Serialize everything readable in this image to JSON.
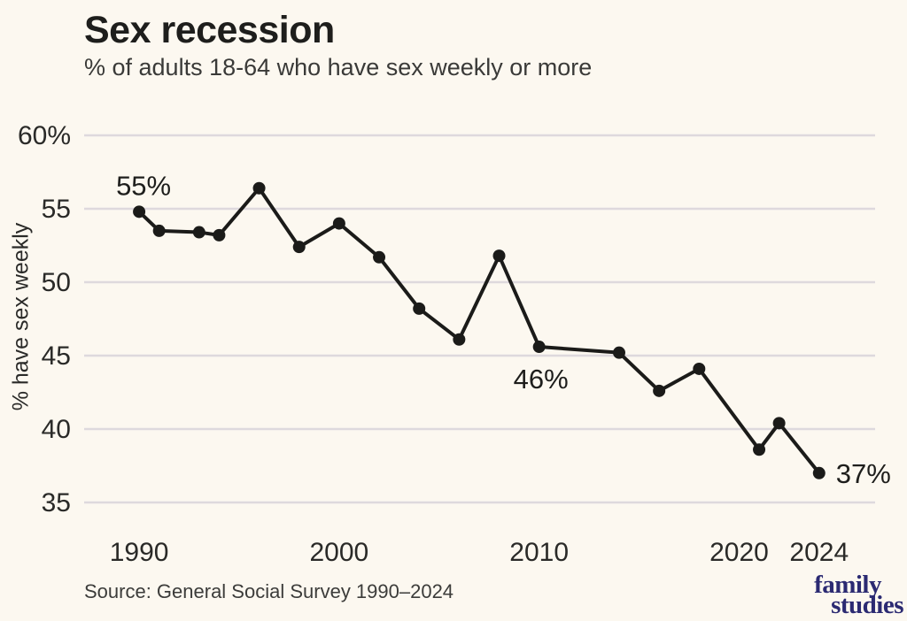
{
  "chart_data": {
    "type": "line",
    "title": "Sex recession",
    "subtitle": "% of adults 18-64 who have sex weekly or more",
    "xlabel": "",
    "ylabel": "% have sex weekly",
    "x": [
      1990,
      1991,
      1993,
      1994,
      1996,
      1998,
      2000,
      2002,
      2004,
      2006,
      2008,
      2010,
      2014,
      2016,
      2018,
      2021,
      2022,
      2024
    ],
    "y": [
      54.8,
      53.5,
      53.4,
      53.2,
      56.4,
      52.4,
      54.0,
      51.7,
      48.2,
      46.1,
      51.8,
      45.6,
      45.2,
      42.6,
      44.1,
      38.6,
      40.4,
      37.0
    ],
    "series_name": "% of adults 18-64 having sex weekly or more",
    "x_tick_values": [
      1990,
      2000,
      2010,
      2020,
      2024
    ],
    "x_tick_labels": [
      "1990",
      "2000",
      "2010",
      "2020",
      "2024"
    ],
    "y_tick_values": [
      60,
      55,
      50,
      45,
      40,
      35
    ],
    "y_tick_labels": [
      "60%",
      "55",
      "50",
      "45",
      "40",
      "35"
    ],
    "x_range": [
      1987.25,
      2026.8
    ],
    "y_range": [
      35,
      60
    ],
    "ylim": [
      35,
      60
    ],
    "grid": "horizontal-only",
    "legend": "none",
    "annotations": [
      {
        "text": "55%",
        "year": 1990,
        "value": 54.8,
        "position": "above"
      },
      {
        "text": "46%",
        "year": 2010,
        "value": 45.6,
        "position": "below"
      },
      {
        "text": "37%",
        "year": 2024,
        "value": 37.0,
        "position": "right"
      }
    ],
    "colors": {
      "background": "#fcf8f0",
      "line": "#1b1b19",
      "point": "#1b1b19",
      "grid": "#ded9dd",
      "tick_text": "#2a2a28",
      "annotation_text": "#1e1e1c"
    }
  },
  "footer": {
    "source": "Source: General Social Survey 1990–2024",
    "logo": {
      "line1": "family",
      "line2": "studies",
      "color": "#2b2a72"
    }
  }
}
